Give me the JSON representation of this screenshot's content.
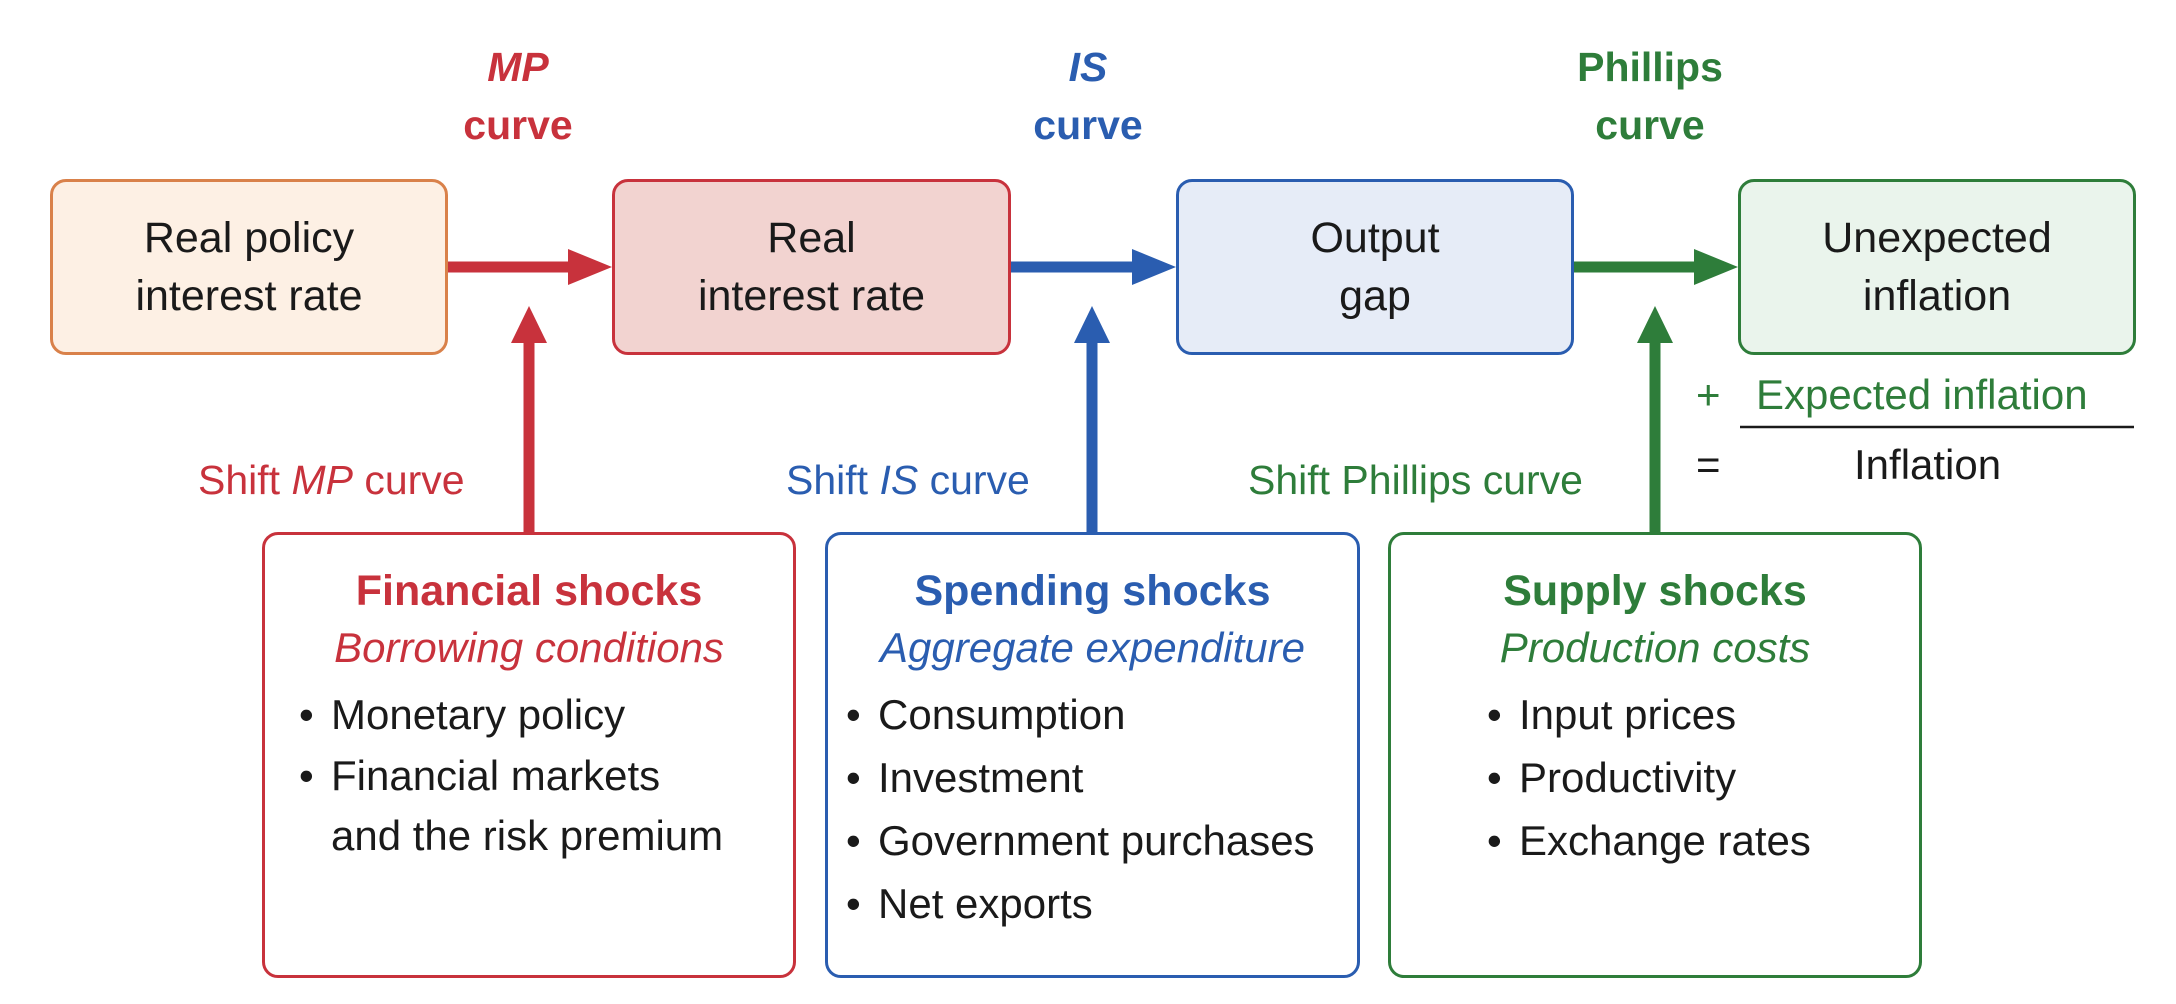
{
  "colors": {
    "red": "#c8323c",
    "blue": "#2a5db0",
    "green": "#2e7d3a",
    "orange_border": "#d9814a",
    "orange_fill": "#fdf0e4",
    "red_fill": "#f2d3d0",
    "blue_fill": "#e6ecf7",
    "green_fill": "#eaf4ec"
  },
  "curves": {
    "mp": {
      "l1": "MP",
      "l2": "curve"
    },
    "is": {
      "l1": "IS",
      "l2": "curve"
    },
    "phillips": {
      "l1": "Phillips",
      "l2": "curve"
    }
  },
  "boxes": {
    "policy_rate": {
      "l1": "Real policy",
      "l2": "interest rate"
    },
    "real_rate": {
      "l1": "Real",
      "l2": "interest rate"
    },
    "output_gap": {
      "l1": "Output",
      "l2": "gap"
    },
    "unexpected_inflation": {
      "l1": "Unexpected",
      "l2": "inflation"
    }
  },
  "equation": {
    "plus": "+",
    "expected": "Expected inflation",
    "equals": "=",
    "result": "Inflation"
  },
  "shifts": {
    "mp": {
      "pre": "Shift ",
      "term": "MP",
      "post": " curve"
    },
    "is": {
      "pre": "Shift ",
      "term": "IS",
      "post": " curve"
    },
    "phillips": {
      "text": "Shift Phillips curve"
    }
  },
  "shocks": {
    "financial": {
      "title": "Financial shocks",
      "subtitle": "Borrowing conditions",
      "items": [
        "Monetary policy",
        "Financial markets",
        "and the risk premium"
      ]
    },
    "spending": {
      "title": "Spending shocks",
      "subtitle": "Aggregate expenditure",
      "items": [
        "Consumption",
        "Investment",
        "Government purchases",
        "Net exports"
      ]
    },
    "supply": {
      "title": "Supply shocks",
      "subtitle": "Production costs",
      "items": [
        "Input prices",
        "Productivity",
        "Exchange rates"
      ]
    }
  }
}
